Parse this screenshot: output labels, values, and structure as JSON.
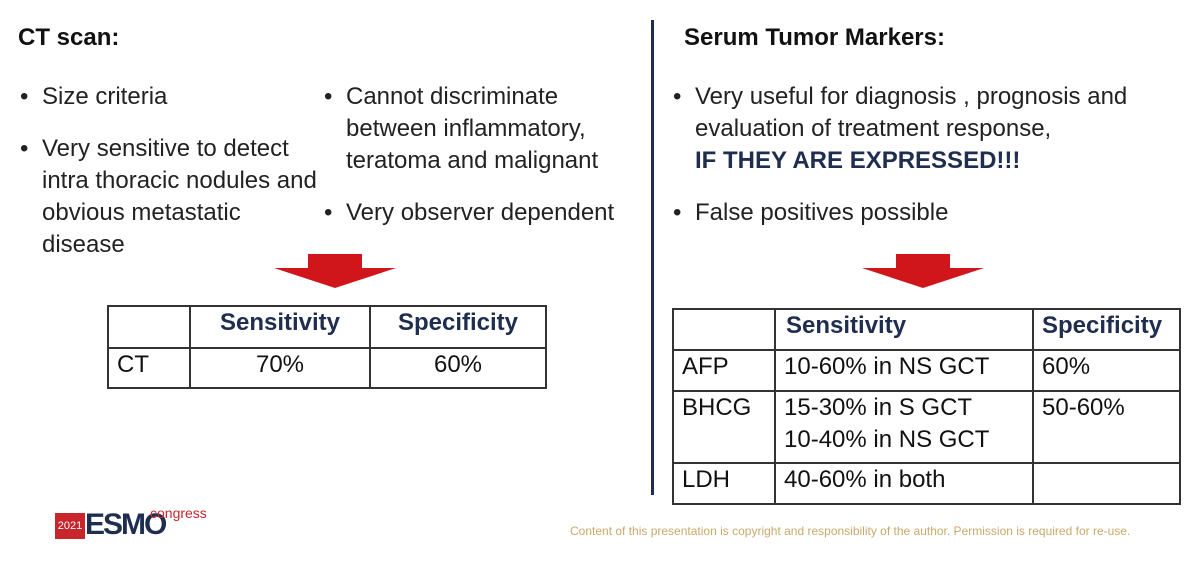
{
  "left": {
    "title": "CT scan:",
    "bullets_col1": [
      "Size criteria",
      "Very sensitive to detect intra thoracic nodules and obvious metastatic disease"
    ],
    "bullets_col2": [
      "Cannot discriminate between inflammatory, teratoma and malignant",
      "Very observer dependent"
    ],
    "table": {
      "header": [
        "Sensitivity",
        "Specificity"
      ],
      "rows": [
        [
          "CT",
          "70%",
          "60%"
        ]
      ]
    }
  },
  "right": {
    "title": "Serum Tumor Markers:",
    "bullet1": "Very useful for diagnosis , prognosis and evaluation of treatment response,",
    "bullet1_emphasis": "IF THEY ARE EXPRESSED!!!",
    "bullet2": "False positives possible",
    "table": {
      "header": [
        "Sensitivity",
        "Specificity"
      ],
      "rows": [
        [
          "AFP",
          [
            "10-60% in NS GCT"
          ],
          "60%"
        ],
        [
          "BHCG",
          [
            "15-30% in S GCT",
            "10-40% in NS GCT"
          ],
          "50-60%"
        ],
        [
          "LDH",
          [
            "40-60% in both"
          ],
          null
        ]
      ]
    }
  },
  "footer": {
    "logo_year": "2021",
    "logo_name": "ESMO",
    "logo_suffix": "congress",
    "copyright": "Content of this presentation is copyright and responsibility of the author. Permission is required for re-use."
  }
}
